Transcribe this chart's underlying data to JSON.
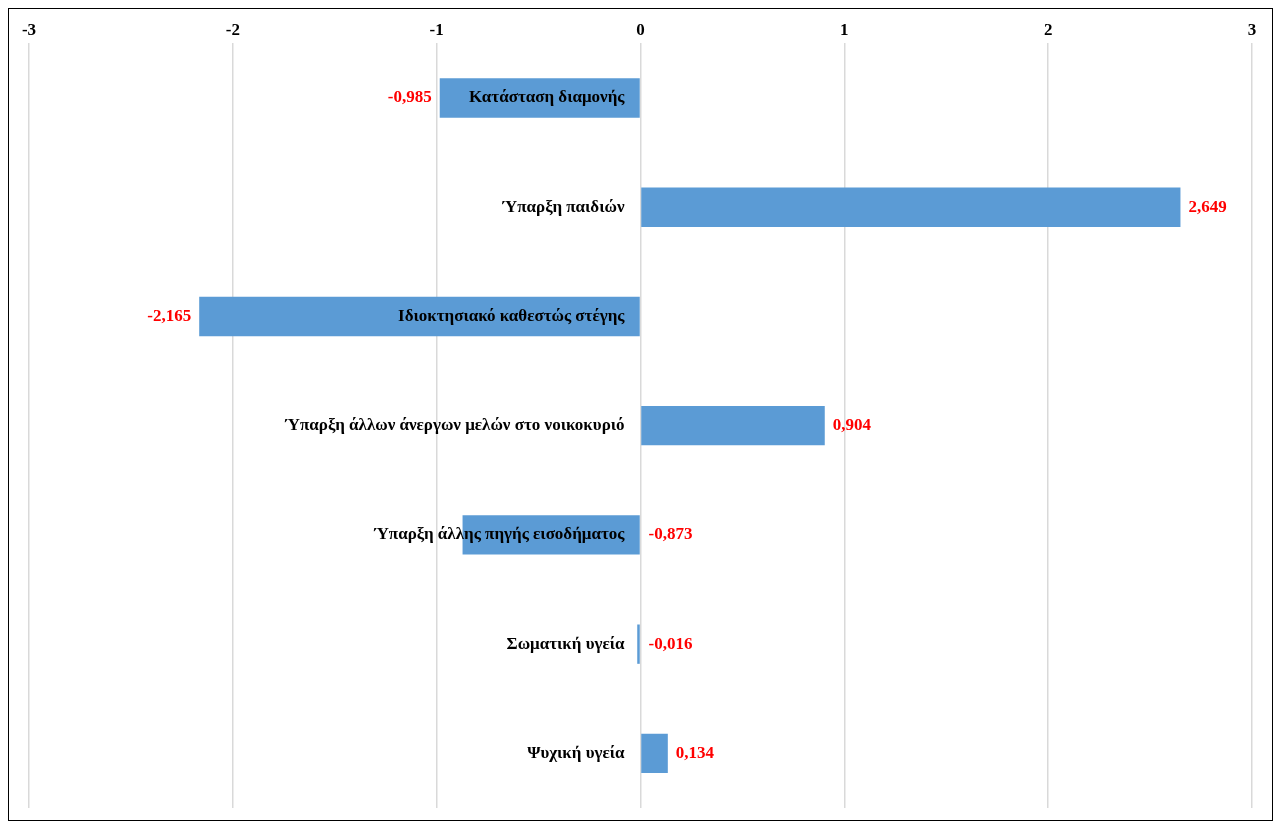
{
  "chart_data": {
    "type": "bar",
    "orientation": "horizontal",
    "categories": [
      "Κατάσταση διαμονής",
      "Ύπαρξη παιδιών",
      "Ιδιοκτησιακό καθεστώς στέγης",
      "Ύπαρξη άλλων άνεργων μελών στο νοικοκυριό",
      "Ύπαρξη άλλης πηγής εισοδήματος",
      "Σωματική υγεία",
      "Ψυχική υγεία"
    ],
    "values": [
      -0.985,
      2.649,
      -2.165,
      0.904,
      -0.873,
      -0.016,
      0.134
    ],
    "value_labels": [
      "-0,985",
      "2,649",
      "-2,165",
      "0,904",
      "-0,873",
      "-0,016",
      "0,134"
    ],
    "color": "#5b9bd5",
    "xlim": [
      -3,
      3
    ],
    "xticks": [
      -3,
      -2,
      -1,
      0,
      1,
      2,
      3
    ],
    "grid": "x",
    "legend": false
  }
}
